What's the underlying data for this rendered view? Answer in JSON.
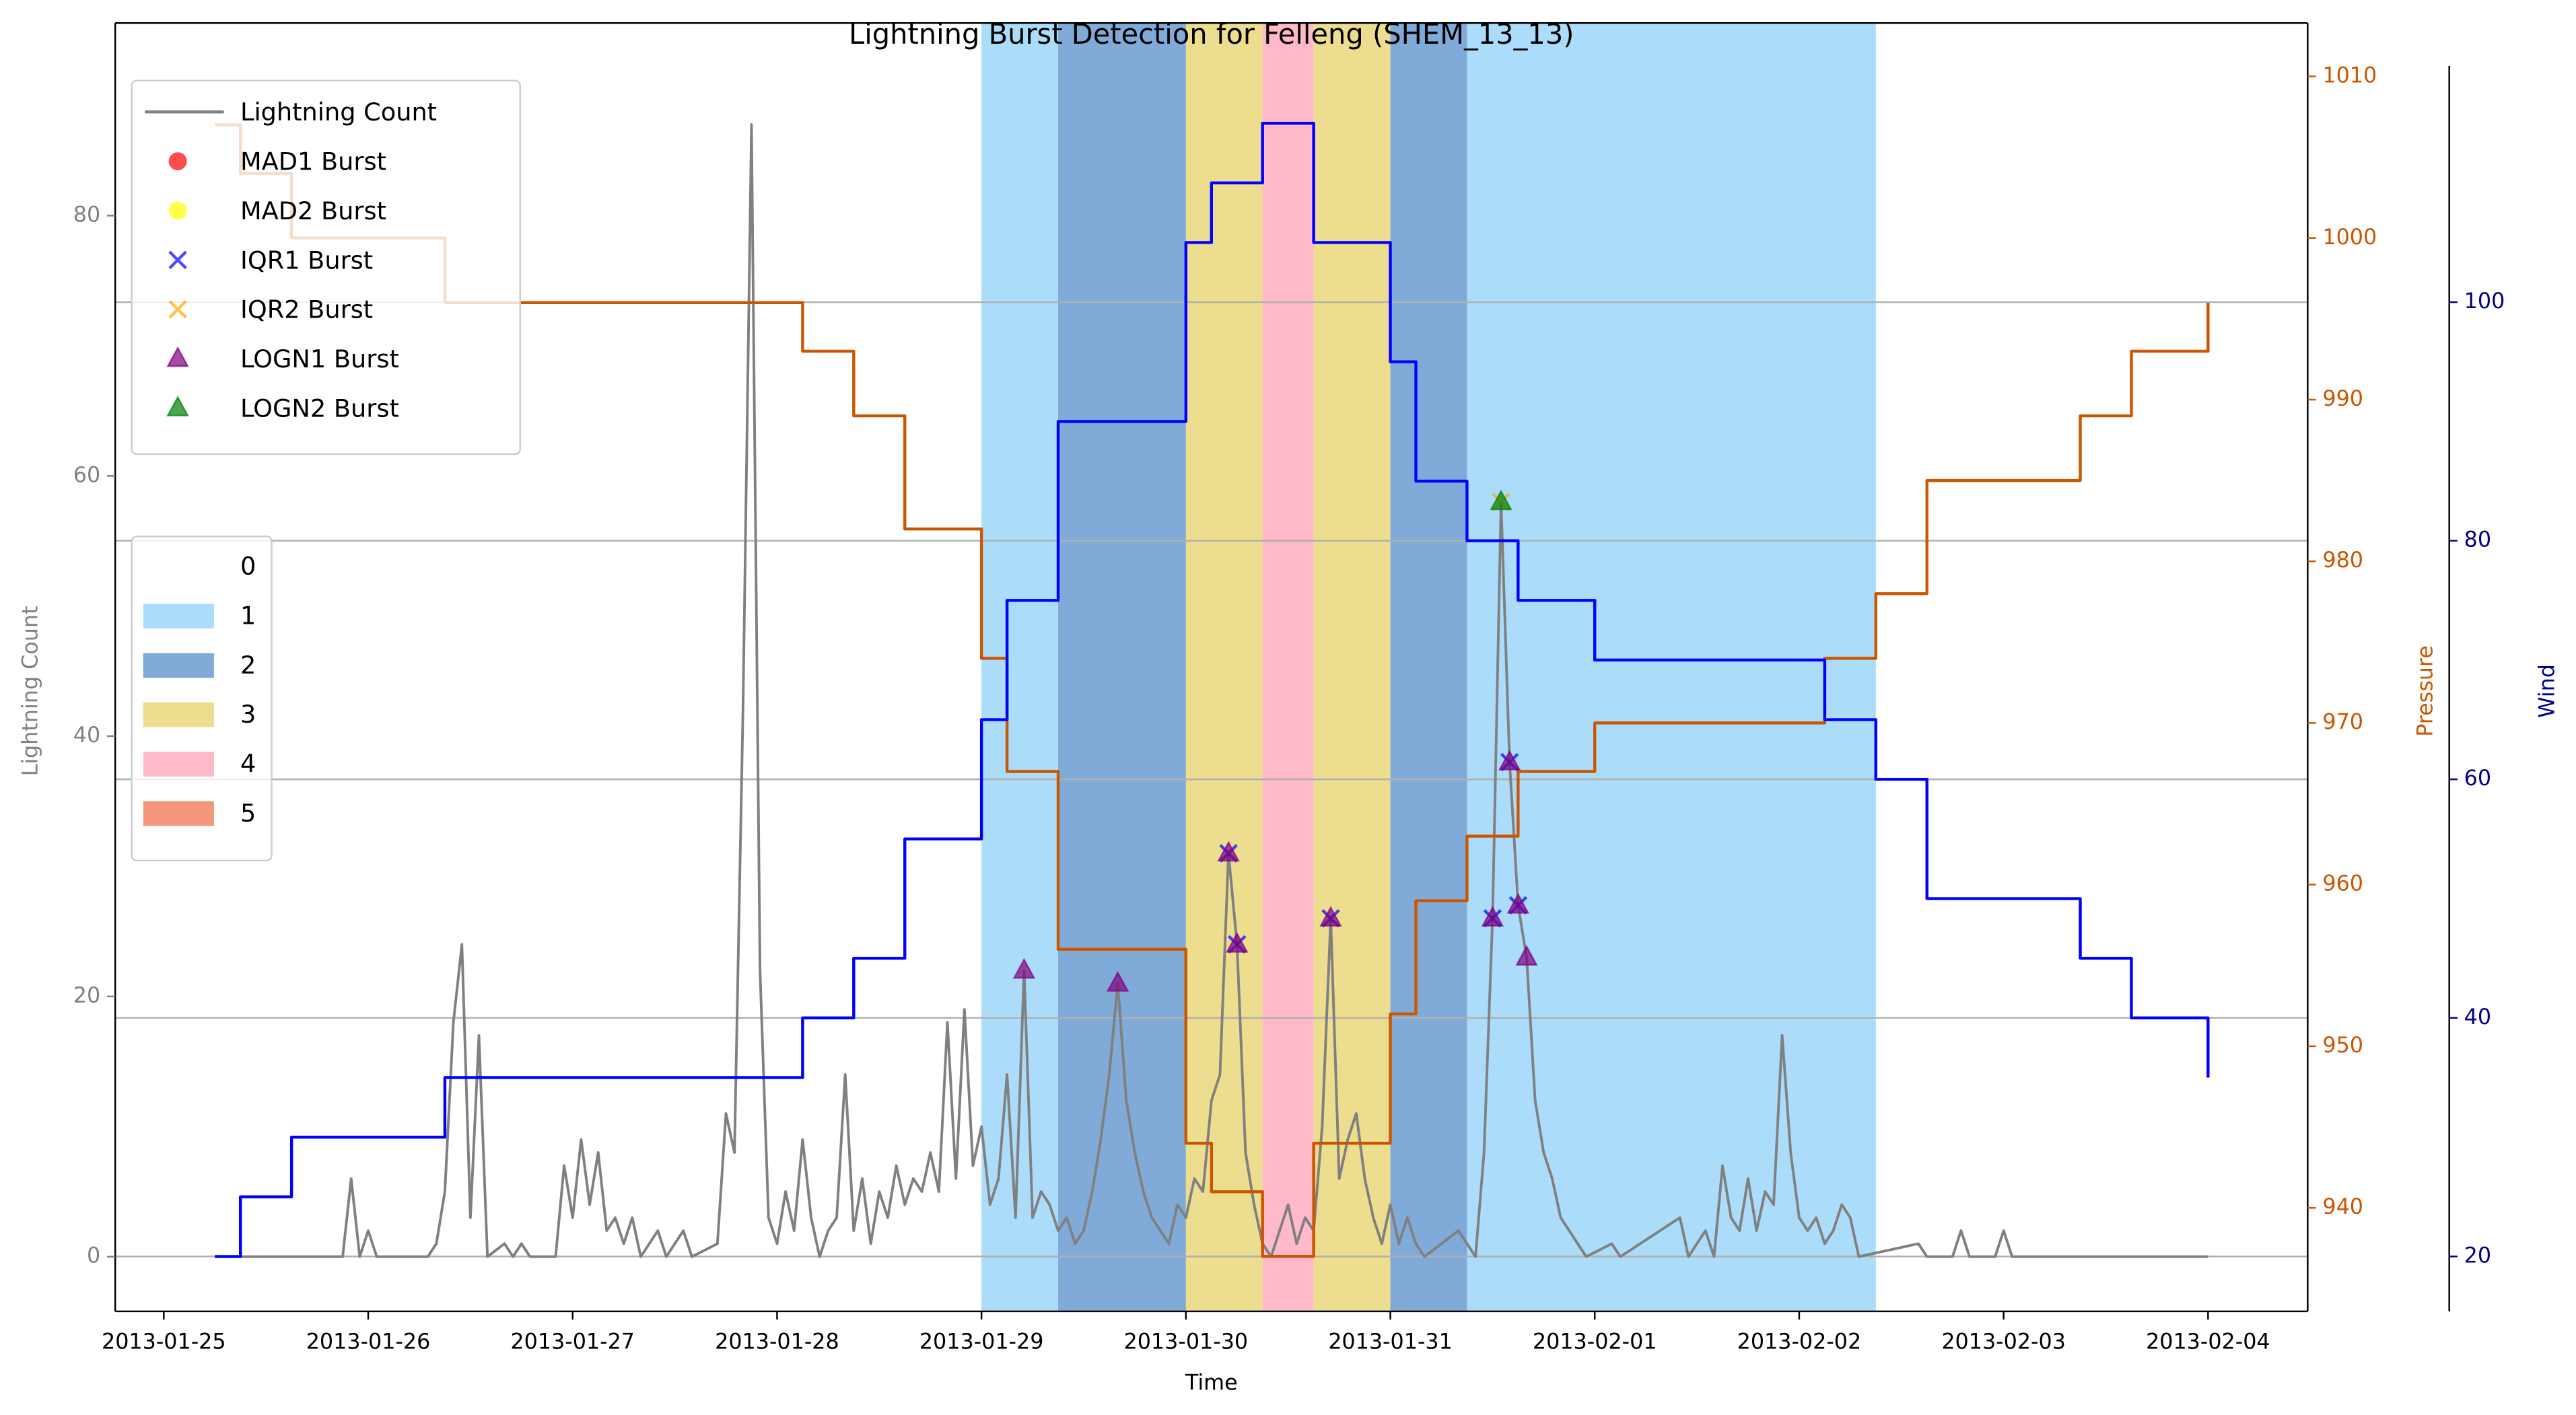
{
  "chart_data": {
    "type": "line",
    "title": "Lightning Burst Detection for Felleng (SHEM_13_13)",
    "xlabel": "Time",
    "ylabel": "Lightning Count",
    "y2label": "Pressure",
    "y3label": "Wind",
    "xlim": [
      "2013-01-24 18:18",
      "2013-02-04 11:42"
    ],
    "xticks": [
      "2013-01-25",
      "2013-01-26",
      "2013-01-27",
      "2013-01-28",
      "2013-01-29",
      "2013-01-30",
      "2013-01-31",
      "2013-02-01",
      "2013-02-02",
      "2013-02-03",
      "2013-02-04"
    ],
    "ylim": [
      -4.2,
      94.8
    ],
    "yticks": [
      0,
      20,
      40,
      60,
      80
    ],
    "ycolor": "#808080",
    "y2lim": [
      933.6,
      1013.3
    ],
    "y2ticks": [
      940,
      950,
      960,
      970,
      980,
      990,
      1000,
      1010
    ],
    "y2color": "#cc5500",
    "y3lim": [
      15.4,
      123.4
    ],
    "y3ticks": [
      20,
      40,
      60,
      80,
      100
    ],
    "y3color": "#00008b",
    "grid_axis": "y3",
    "series": [
      {
        "name": "Lightning Count",
        "color": "#808080",
        "axis": "y",
        "in_legend": true,
        "step": false,
        "x": [
          "2013-01-25 06:00",
          "2013-01-25 21:00",
          "2013-01-25 22:00",
          "2013-01-25 23:00",
          "2013-01-26 00:00",
          "2013-01-26 01:00",
          "2013-01-26 07:00",
          "2013-01-26 08:00",
          "2013-01-26 09:00",
          "2013-01-26 10:00",
          "2013-01-26 11:00",
          "2013-01-26 12:00",
          "2013-01-26 13:00",
          "2013-01-26 14:00",
          "2013-01-26 16:00",
          "2013-01-26 17:00",
          "2013-01-26 18:00",
          "2013-01-26 19:00",
          "2013-01-26 22:00",
          "2013-01-26 23:00",
          "2013-01-27 00:00",
          "2013-01-27 01:00",
          "2013-01-27 02:00",
          "2013-01-27 03:00",
          "2013-01-27 04:00",
          "2013-01-27 05:00",
          "2013-01-27 06:00",
          "2013-01-27 07:00",
          "2013-01-27 08:00",
          "2013-01-27 10:00",
          "2013-01-27 11:00",
          "2013-01-27 13:00",
          "2013-01-27 14:00",
          "2013-01-27 17:00",
          "2013-01-27 18:00",
          "2013-01-27 19:00",
          "2013-01-27 20:00",
          "2013-01-27 21:00",
          "2013-01-27 22:00",
          "2013-01-27 23:00",
          "2013-01-28 00:00",
          "2013-01-28 01:00",
          "2013-01-28 02:00",
          "2013-01-28 03:00",
          "2013-01-28 04:00",
          "2013-01-28 05:00",
          "2013-01-28 06:00",
          "2013-01-28 07:00",
          "2013-01-28 08:00",
          "2013-01-28 09:00",
          "2013-01-28 10:00",
          "2013-01-28 11:00",
          "2013-01-28 12:00",
          "2013-01-28 13:00",
          "2013-01-28 14:00",
          "2013-01-28 15:00",
          "2013-01-28 16:00",
          "2013-01-28 17:00",
          "2013-01-28 18:00",
          "2013-01-28 19:00",
          "2013-01-28 20:00",
          "2013-01-28 21:00",
          "2013-01-28 22:00",
          "2013-01-28 23:00",
          "2013-01-29 00:00",
          "2013-01-29 01:00",
          "2013-01-29 02:00",
          "2013-01-29 03:00",
          "2013-01-29 04:00",
          "2013-01-29 05:00",
          "2013-01-29 06:00",
          "2013-01-29 07:00",
          "2013-01-29 08:00",
          "2013-01-29 09:00",
          "2013-01-29 10:00",
          "2013-01-29 11:00",
          "2013-01-29 12:00",
          "2013-01-29 13:00",
          "2013-01-29 14:00",
          "2013-01-29 15:00",
          "2013-01-29 16:00",
          "2013-01-29 17:00",
          "2013-01-29 18:00",
          "2013-01-29 19:00",
          "2013-01-29 20:00",
          "2013-01-29 21:00",
          "2013-01-29 22:00",
          "2013-01-29 23:00",
          "2013-01-30 00:00",
          "2013-01-30 01:00",
          "2013-01-30 02:00",
          "2013-01-30 03:00",
          "2013-01-30 04:00",
          "2013-01-30 05:00",
          "2013-01-30 06:00",
          "2013-01-30 07:00",
          "2013-01-30 08:00",
          "2013-01-30 09:00",
          "2013-01-30 10:00",
          "2013-01-30 11:00",
          "2013-01-30 12:00",
          "2013-01-30 13:00",
          "2013-01-30 14:00",
          "2013-01-30 15:00",
          "2013-01-30 16:00",
          "2013-01-30 17:00",
          "2013-01-30 18:00",
          "2013-01-30 19:00",
          "2013-01-30 20:00",
          "2013-01-30 21:00",
          "2013-01-30 22:00",
          "2013-01-30 23:00",
          "2013-01-31 00:00",
          "2013-01-31 01:00",
          "2013-01-31 02:00",
          "2013-01-31 03:00",
          "2013-01-31 04:00",
          "2013-01-31 08:00",
          "2013-01-31 09:00",
          "2013-01-31 10:00",
          "2013-01-31 11:00",
          "2013-01-31 12:00",
          "2013-01-31 13:00",
          "2013-01-31 14:00",
          "2013-01-31 15:00",
          "2013-01-31 16:00",
          "2013-01-31 17:00",
          "2013-01-31 18:00",
          "2013-01-31 19:00",
          "2013-01-31 20:00",
          "2013-01-31 21:00",
          "2013-01-31 22:00",
          "2013-01-31 23:00",
          "2013-02-01 02:00",
          "2013-02-01 03:00",
          "2013-02-01 10:00",
          "2013-02-01 11:00",
          "2013-02-01 13:00",
          "2013-02-01 14:00",
          "2013-02-01 15:00",
          "2013-02-01 16:00",
          "2013-02-01 17:00",
          "2013-02-01 18:00",
          "2013-02-01 19:00",
          "2013-02-01 20:00",
          "2013-02-01 21:00",
          "2013-02-01 22:00",
          "2013-02-01 23:00",
          "2013-02-02 00:00",
          "2013-02-02 01:00",
          "2013-02-02 02:00",
          "2013-02-02 03:00",
          "2013-02-02 04:00",
          "2013-02-02 05:00",
          "2013-02-02 06:00",
          "2013-02-02 07:00",
          "2013-02-02 14:00",
          "2013-02-02 15:00",
          "2013-02-02 18:00",
          "2013-02-02 19:00",
          "2013-02-02 20:00",
          "2013-02-02 23:00",
          "2013-02-03 00:00",
          "2013-02-03 01:00",
          "2013-02-04 00:00"
        ],
        "values": [
          0,
          0,
          6,
          0,
          2,
          0,
          0,
          1,
          5,
          18,
          24,
          3,
          17,
          0,
          1,
          0,
          1,
          0,
          0,
          7,
          3,
          9,
          4,
          8,
          2,
          3,
          1,
          3,
          0,
          2,
          0,
          2,
          0,
          1,
          11,
          8,
          42,
          87,
          22,
          3,
          1,
          5,
          2,
          9,
          3,
          0,
          2,
          3,
          14,
          2,
          6,
          1,
          5,
          3,
          7,
          4,
          6,
          5,
          8,
          5,
          18,
          6,
          19,
          7,
          10,
          4,
          6,
          14,
          3,
          22,
          3,
          5,
          4,
          2,
          3,
          1,
          2,
          5,
          9,
          14,
          21,
          12,
          8,
          5,
          3,
          2,
          1,
          4,
          3,
          6,
          5,
          12,
          14,
          31,
          24,
          8,
          4,
          1,
          0,
          2,
          4,
          1,
          3,
          2,
          10,
          26,
          6,
          9,
          11,
          6,
          3,
          1,
          4,
          1,
          3,
          1,
          0,
          2,
          1,
          0,
          8,
          26,
          58,
          38,
          27,
          23,
          12,
          8,
          6,
          3,
          2,
          1,
          0,
          1,
          0,
          3,
          0,
          2,
          0,
          7,
          3,
          2,
          6,
          2,
          5,
          4,
          17,
          8,
          3,
          2,
          3,
          1,
          2,
          4,
          3,
          0,
          1,
          0,
          0,
          2,
          0,
          0,
          2,
          0,
          0
        ]
      },
      {
        "name": "Pressure",
        "color": "#cc5500",
        "axis": "y2",
        "in_legend": false,
        "step": true,
        "x": [
          "2013-01-25 06:00",
          "2013-01-25 09:00",
          "2013-01-25 15:00",
          "2013-01-26 09:00",
          "2013-01-28 03:00",
          "2013-01-28 09:00",
          "2013-01-28 15:00",
          "2013-01-29 00:00",
          "2013-01-29 03:00",
          "2013-01-29 09:00",
          "2013-01-30 00:00",
          "2013-01-30 03:00",
          "2013-01-30 09:00",
          "2013-01-30 15:00",
          "2013-01-31 00:00",
          "2013-01-31 03:00",
          "2013-01-31 09:00",
          "2013-01-31 15:00",
          "2013-02-01 00:00",
          "2013-02-02 03:00",
          "2013-02-02 09:00",
          "2013-02-02 15:00",
          "2013-02-03 09:00",
          "2013-02-03 15:00",
          "2013-02-04 00:00"
        ],
        "values": [
          1007,
          1004,
          1000,
          996,
          993,
          989,
          982,
          974,
          967,
          956,
          944,
          941,
          937,
          944,
          952,
          959,
          963,
          967,
          970,
          974,
          978,
          985,
          989,
          993,
          996
        ]
      },
      {
        "name": "Wind",
        "color": "#0000ff",
        "axis": "y3",
        "in_legend": false,
        "step": true,
        "x": [
          "2013-01-25 06:00",
          "2013-01-25 09:00",
          "2013-01-25 15:00",
          "2013-01-26 09:00",
          "2013-01-28 03:00",
          "2013-01-28 09:00",
          "2013-01-28 15:00",
          "2013-01-29 00:00",
          "2013-01-29 03:00",
          "2013-01-29 09:00",
          "2013-01-30 00:00",
          "2013-01-30 03:00",
          "2013-01-30 09:00",
          "2013-01-30 15:00",
          "2013-01-31 00:00",
          "2013-01-31 03:00",
          "2013-01-31 09:00",
          "2013-01-31 15:00",
          "2013-02-01 00:00",
          "2013-02-02 03:00",
          "2013-02-02 09:00",
          "2013-02-02 15:00",
          "2013-02-03 09:00",
          "2013-02-03 15:00",
          "2013-02-04 00:00"
        ],
        "values": [
          20,
          25,
          30,
          35,
          40,
          45,
          55,
          65,
          75,
          90,
          105,
          110,
          115,
          105,
          95,
          85,
          80,
          75,
          70,
          65,
          60,
          50,
          45,
          40,
          35
        ]
      }
    ],
    "markers": [
      {
        "name": "MAD1 Burst",
        "color": "#ff0000",
        "marker": "circle",
        "x": [],
        "values": []
      },
      {
        "name": "MAD2 Burst",
        "color": "#ffff00",
        "marker": "circle",
        "x": [],
        "values": []
      },
      {
        "name": "IQR1 Burst",
        "color": "#0000ff",
        "marker": "cross",
        "x": [
          "2013-01-30 05:00",
          "2013-01-30 06:00",
          "2013-01-30 17:00",
          "2013-01-31 12:00",
          "2013-01-31 14:00",
          "2013-01-31 15:00"
        ],
        "values": [
          31,
          24,
          26,
          26,
          38,
          27
        ]
      },
      {
        "name": "IQR2 Burst",
        "color": "#ffa500",
        "marker": "cross",
        "x": [
          "2013-01-31 13:00"
        ],
        "values": [
          58
        ]
      },
      {
        "name": "LOGN1 Burst",
        "color": "#800080",
        "marker": "triangle",
        "x": [
          "2013-01-29 05:00",
          "2013-01-29 16:00",
          "2013-01-30 05:00",
          "2013-01-30 06:00",
          "2013-01-30 17:00",
          "2013-01-31 12:00",
          "2013-01-31 14:00",
          "2013-01-31 15:00",
          "2013-01-31 16:00"
        ],
        "values": [
          22,
          21,
          31,
          24,
          26,
          26,
          38,
          27,
          23
        ]
      },
      {
        "name": "LOGN2 Burst",
        "color": "#008000",
        "marker": "triangle",
        "x": [
          "2013-01-31 13:00"
        ],
        "values": [
          58
        ]
      }
    ],
    "band_legend": {
      "labels": [
        "0",
        "1",
        "2",
        "3",
        "4",
        "5"
      ],
      "colors": [
        "#ffffff",
        "#87cefa",
        "#4a86c8",
        "#e6cf5e",
        "#ff9bb0",
        "#ee6a40"
      ]
    },
    "bands": {
      "start": [
        "2013-01-29 00:00",
        "2013-01-29 09:00",
        "2013-01-30 00:00",
        "2013-01-30 09:00",
        "2013-01-30 15:00",
        "2013-01-31 00:00",
        "2013-01-31 09:00"
      ],
      "end": [
        "2013-01-29 09:00",
        "2013-01-30 00:00",
        "2013-01-30 09:00",
        "2013-01-30 15:00",
        "2013-01-31 00:00",
        "2013-01-31 09:00",
        "2013-02-02 09:00"
      ],
      "level": [
        1,
        2,
        3,
        4,
        3,
        2,
        1
      ]
    }
  }
}
